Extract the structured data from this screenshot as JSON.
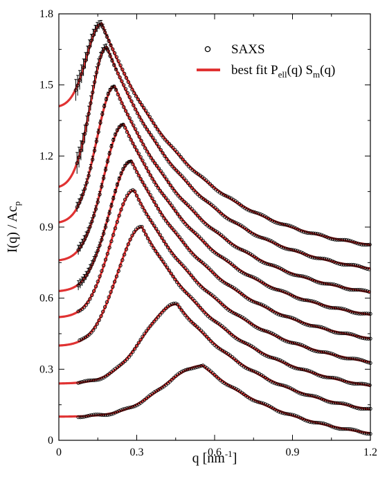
{
  "chart_data": {
    "type": "scatter",
    "xlabel": "q [nm-1]",
    "ylabel": "I(q) / Acp",
    "xlim": [
      0,
      1.2
    ],
    "ylim": [
      0,
      1.8
    ],
    "x_ticks": [
      "0",
      "0.3",
      "0.6",
      "0.9",
      "1.2"
    ],
    "x_tick_values": [
      0,
      0.3,
      0.6,
      0.9,
      1.2
    ],
    "y_ticks": [
      "0",
      "0.3",
      "0.6",
      "0.9",
      "1.2",
      "1.5",
      "1.8"
    ],
    "y_tick_values": [
      0,
      0.3,
      0.6,
      0.9,
      1.2,
      1.5,
      1.8
    ],
    "grid": false,
    "legend_position": "top-right",
    "legend": [
      {
        "label": "SAXS",
        "marker": "open-circle",
        "color": "#000000"
      },
      {
        "label": "best fit Pell(q) Sm(q)",
        "marker": "line",
        "color": "#e03232"
      }
    ],
    "series": [
      {
        "peak": [
          0.555,
          0.315
        ],
        "at_0": 0.1,
        "at_end": 0.03,
        "q_start": 0.075
      },
      {
        "peak": [
          0.455,
          0.575
        ],
        "at_0": 0.24,
        "at_end": 0.13,
        "q_start": 0.075
      },
      {
        "peak": [
          0.32,
          0.9
        ],
        "at_0": 0.4,
        "at_end": 0.23,
        "q_start": 0.08
      },
      {
        "peak": [
          0.29,
          1.055
        ],
        "at_0": 0.52,
        "at_end": 0.33,
        "q_start": 0.075
      },
      {
        "peak": [
          0.28,
          1.18
        ],
        "at_0": 0.63,
        "at_end": 0.43,
        "q_start": 0.075
      },
      {
        "peak": [
          0.25,
          1.335
        ],
        "at_0": 0.76,
        "at_end": 0.53,
        "q_start": 0.075
      },
      {
        "peak": [
          0.215,
          1.495
        ],
        "at_0": 0.92,
        "at_end": 0.625,
        "q_start": 0.07
      },
      {
        "peak": [
          0.185,
          1.66
        ],
        "at_0": 1.07,
        "at_end": 0.725,
        "q_start": 0.07
      },
      {
        "peak": [
          0.165,
          1.76
        ],
        "at_0": 1.41,
        "at_end": 0.825,
        "q_start": 0.065
      }
    ]
  }
}
